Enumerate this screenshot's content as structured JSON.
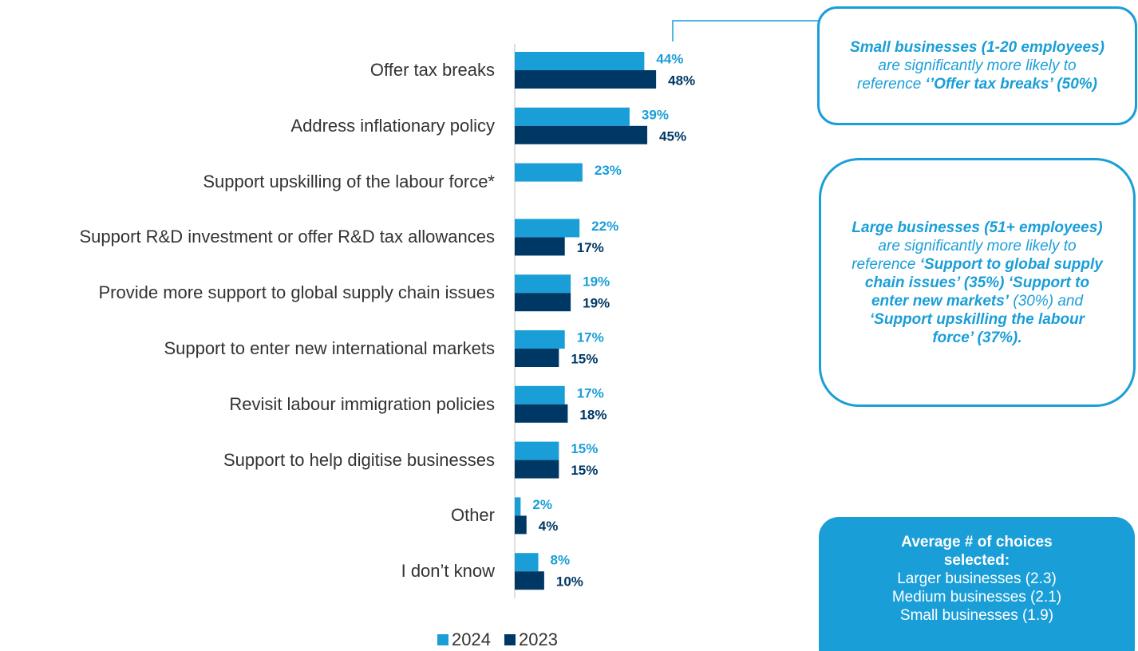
{
  "chart_data": {
    "type": "bar",
    "orientation": "horizontal",
    "categories": [
      "Offer tax breaks",
      "Address inflationary policy",
      "Support upskilling of the labour force*",
      "Support R&D investment or offer R&D tax allowances",
      "Provide more support to global supply chain issues",
      "Support to enter new international markets",
      "Revisit labour immigration policies",
      "Support to help digitise businesses",
      "Other",
      "I don’t know"
    ],
    "series": [
      {
        "name": "2024",
        "color": "#1a9ed8",
        "values": [
          44,
          39,
          23,
          22,
          19,
          17,
          17,
          15,
          2,
          8
        ],
        "value_labels": [
          "44%",
          "39%",
          "23%",
          "22%",
          "19%",
          "17%",
          "17%",
          "15%",
          "2%",
          "8%"
        ]
      },
      {
        "name": "2023",
        "color": "#003865",
        "values": [
          48,
          45,
          null,
          17,
          19,
          15,
          18,
          15,
          4,
          10
        ],
        "value_labels": [
          "48%",
          "45%",
          null,
          "17%",
          "19%",
          "15%",
          "18%",
          "15%",
          "4%",
          "10%"
        ]
      }
    ],
    "legend": "bottom",
    "annotations": [
      {
        "runs": [
          {
            "text": "Small businesses (1-20 employees)",
            "bold": true
          },
          {
            "text": " are significantly more likely to reference ",
            "bold": false
          },
          {
            "text": "‘’Offer tax breaks’ (50%)",
            "bold": true
          }
        ]
      },
      {
        "runs": [
          {
            "text": "Large businesses (51+ employees)",
            "bold": true
          },
          {
            "text": " are significantly more likely to reference ",
            "bold": false
          },
          {
            "text": "‘Support to global supply chain issues’ (35%) ‘Support to enter new markets’",
            "bold": true
          },
          {
            "text": " (30%) and ",
            "bold": false
          },
          {
            "text": "‘Support upskilling the labour force’ (37%).",
            "bold": true
          }
        ]
      }
    ],
    "summary": {
      "title": "Average # of choices selected:",
      "lines": [
        "Larger businesses (2.3)",
        "Medium businesses (2.1)",
        "Small businesses (1.9)"
      ]
    }
  }
}
